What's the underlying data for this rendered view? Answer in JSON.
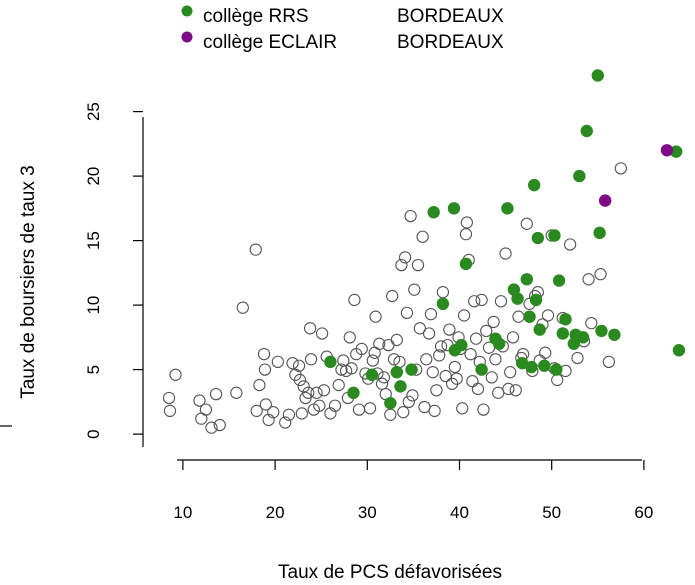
{
  "chart_data": {
    "type": "scatter",
    "xlabel": "Taux de PCS défavorisées",
    "ylabel": "Taux de boursiers de taux 3",
    "xlim": [
      6,
      65
    ],
    "ylim": [
      -1,
      29
    ],
    "x_ticks": [
      10,
      20,
      30,
      40,
      50,
      60
    ],
    "y_ticks": [
      0,
      5,
      10,
      15,
      20,
      25
    ],
    "legend_position": "top",
    "legend": [
      {
        "label": "collège RRS",
        "city": "BORDEAUX",
        "color": "#2a8a1f"
      },
      {
        "label": "collège ECLAIR",
        "city": "BORDEAUX",
        "color": "#7e0a85"
      }
    ],
    "series": [
      {
        "marker": "open-circle",
        "color": "#555555",
        "points": [
          [
            8.5,
            2.8
          ],
          [
            8.6,
            1.8
          ],
          [
            9.2,
            4.6
          ],
          [
            11.8,
            2.6
          ],
          [
            12.0,
            1.2
          ],
          [
            12.5,
            1.9
          ],
          [
            13.1,
            0.5
          ],
          [
            13.6,
            3.1
          ],
          [
            14.0,
            0.7
          ],
          [
            15.8,
            3.2
          ],
          [
            16.5,
            9.8
          ],
          [
            17.9,
            14.3
          ],
          [
            18.0,
            1.8
          ],
          [
            18.3,
            3.8
          ],
          [
            18.8,
            6.2
          ],
          [
            18.9,
            5.0
          ],
          [
            19.0,
            2.3
          ],
          [
            19.3,
            1.1
          ],
          [
            19.8,
            1.7
          ],
          [
            20.3,
            5.6
          ],
          [
            21.1,
            0.9
          ],
          [
            21.5,
            1.5
          ],
          [
            21.9,
            5.5
          ],
          [
            22.2,
            4.6
          ],
          [
            22.6,
            5.3
          ],
          [
            22.7,
            4.2
          ],
          [
            22.9,
            1.6
          ],
          [
            23.1,
            3.7
          ],
          [
            23.3,
            2.8
          ],
          [
            23.6,
            3.2
          ],
          [
            23.8,
            8.2
          ],
          [
            23.9,
            5.8
          ],
          [
            24.2,
            1.9
          ],
          [
            24.5,
            3.2
          ],
          [
            24.8,
            2.2
          ],
          [
            25.1,
            7.8
          ],
          [
            25.3,
            3.4
          ],
          [
            25.6,
            6.0
          ],
          [
            26.0,
            1.6
          ],
          [
            26.5,
            2.2
          ],
          [
            26.9,
            3.8
          ],
          [
            27.2,
            5.0
          ],
          [
            27.4,
            5.7
          ],
          [
            27.7,
            4.9
          ],
          [
            27.9,
            2.8
          ],
          [
            28.1,
            7.5
          ],
          [
            28.3,
            5.1
          ],
          [
            28.6,
            10.4
          ],
          [
            28.8,
            6.2
          ],
          [
            29.1,
            1.9
          ],
          [
            29.4,
            6.6
          ],
          [
            29.8,
            4.7
          ],
          [
            30.1,
            4.3
          ],
          [
            30.3,
            2.0
          ],
          [
            30.6,
            5.7
          ],
          [
            30.8,
            6.3
          ],
          [
            30.9,
            9.1
          ],
          [
            31.1,
            4.7
          ],
          [
            31.3,
            7.0
          ],
          [
            31.6,
            3.9
          ],
          [
            31.8,
            4.4
          ],
          [
            32.0,
            3.1
          ],
          [
            32.3,
            6.9
          ],
          [
            32.5,
            1.5
          ],
          [
            32.7,
            10.7
          ],
          [
            32.9,
            5.8
          ],
          [
            33.2,
            7.3
          ],
          [
            33.5,
            5.6
          ],
          [
            33.7,
            13.1
          ],
          [
            33.9,
            1.7
          ],
          [
            34.1,
            13.7
          ],
          [
            34.3,
            9.4
          ],
          [
            34.5,
            2.5
          ],
          [
            34.7,
            16.9
          ],
          [
            34.9,
            3.0
          ],
          [
            35.1,
            11.2
          ],
          [
            35.3,
            5.0
          ],
          [
            35.5,
            13.1
          ],
          [
            35.7,
            8.2
          ],
          [
            36.0,
            15.3
          ],
          [
            36.2,
            2.1
          ],
          [
            36.4,
            5.8
          ],
          [
            36.7,
            7.8
          ],
          [
            36.9,
            9.3
          ],
          [
            37.1,
            4.8
          ],
          [
            37.3,
            1.8
          ],
          [
            37.5,
            3.4
          ],
          [
            37.8,
            6.1
          ],
          [
            38.0,
            6.8
          ],
          [
            38.2,
            11.0
          ],
          [
            38.5,
            4.5
          ],
          [
            38.7,
            6.9
          ],
          [
            38.9,
            8.1
          ],
          [
            39.2,
            3.9
          ],
          [
            39.5,
            5.2
          ],
          [
            39.7,
            4.3
          ],
          [
            39.9,
            7.5
          ],
          [
            40.1,
            6.6
          ],
          [
            40.3,
            2.0
          ],
          [
            40.5,
            9.2
          ],
          [
            40.7,
            15.5
          ],
          [
            40.8,
            16.4
          ],
          [
            41.0,
            13.5
          ],
          [
            41.2,
            6.2
          ],
          [
            41.4,
            4.1
          ],
          [
            41.6,
            10.3
          ],
          [
            41.8,
            7.4
          ],
          [
            42.0,
            3.5
          ],
          [
            42.2,
            5.6
          ],
          [
            42.4,
            10.4
          ],
          [
            42.6,
            1.9
          ],
          [
            42.9,
            8.0
          ],
          [
            43.2,
            6.7
          ],
          [
            43.5,
            4.4
          ],
          [
            43.7,
            8.7
          ],
          [
            43.9,
            5.8
          ],
          [
            44.2,
            3.2
          ],
          [
            44.5,
            10.3
          ],
          [
            44.7,
            6.8
          ],
          [
            45.0,
            14.0
          ],
          [
            45.3,
            3.5
          ],
          [
            45.5,
            4.8
          ],
          [
            45.8,
            7.5
          ],
          [
            46.1,
            3.4
          ],
          [
            46.4,
            9.1
          ],
          [
            46.7,
            5.9
          ],
          [
            46.9,
            6.2
          ],
          [
            47.3,
            16.3
          ],
          [
            47.6,
            10.1
          ],
          [
            47.9,
            4.9
          ],
          [
            48.2,
            10.7
          ],
          [
            48.5,
            11.0
          ],
          [
            48.7,
            5.7
          ],
          [
            49.0,
            8.5
          ],
          [
            49.3,
            6.3
          ],
          [
            49.6,
            9.2
          ],
          [
            50.0,
            15.4
          ],
          [
            50.3,
            5.1
          ],
          [
            50.6,
            4.2
          ],
          [
            51.2,
            9.0
          ],
          [
            51.5,
            4.9
          ],
          [
            52.0,
            14.7
          ],
          [
            52.8,
            5.9
          ],
          [
            53.5,
            7.2
          ],
          [
            54.0,
            12.0
          ],
          [
            54.3,
            8.6
          ],
          [
            55.3,
            12.4
          ],
          [
            56.2,
            5.6
          ],
          [
            57.5,
            20.6
          ]
        ]
      },
      {
        "name": "collège RRS",
        "marker": "filled-circle",
        "color": "#2a8a1f",
        "points": [
          [
            26.0,
            5.6
          ],
          [
            28.5,
            3.2
          ],
          [
            30.5,
            4.6
          ],
          [
            32.5,
            2.4
          ],
          [
            33.2,
            4.8
          ],
          [
            33.6,
            3.7
          ],
          [
            34.8,
            5.0
          ],
          [
            37.2,
            17.2
          ],
          [
            38.2,
            10.1
          ],
          [
            39.4,
            17.5
          ],
          [
            39.5,
            6.5
          ],
          [
            40.2,
            6.9
          ],
          [
            40.7,
            13.2
          ],
          [
            42.4,
            5.0
          ],
          [
            43.9,
            7.4
          ],
          [
            44.3,
            7.0
          ],
          [
            45.2,
            17.5
          ],
          [
            45.9,
            11.2
          ],
          [
            46.3,
            10.5
          ],
          [
            46.8,
            5.5
          ],
          [
            47.3,
            12.0
          ],
          [
            47.6,
            9.1
          ],
          [
            47.8,
            5.2
          ],
          [
            48.1,
            19.3
          ],
          [
            48.3,
            10.4
          ],
          [
            48.5,
            15.2
          ],
          [
            48.7,
            8.1
          ],
          [
            49.2,
            5.3
          ],
          [
            50.3,
            15.4
          ],
          [
            50.5,
            5.0
          ],
          [
            50.8,
            11.9
          ],
          [
            51.2,
            7.8
          ],
          [
            51.5,
            8.9
          ],
          [
            52.4,
            7.0
          ],
          [
            52.6,
            7.7
          ],
          [
            53.0,
            20.0
          ],
          [
            53.4,
            7.5
          ],
          [
            53.8,
            23.5
          ],
          [
            55.0,
            27.8
          ],
          [
            55.2,
            15.6
          ],
          [
            55.4,
            8.0
          ],
          [
            56.8,
            7.7
          ],
          [
            63.5,
            21.9
          ],
          [
            63.8,
            6.5
          ]
        ]
      },
      {
        "name": "collège ECLAIR",
        "marker": "filled-circle",
        "color": "#7e0a85",
        "points": [
          [
            55.8,
            18.1
          ],
          [
            62.5,
            22.0
          ]
        ]
      }
    ]
  }
}
